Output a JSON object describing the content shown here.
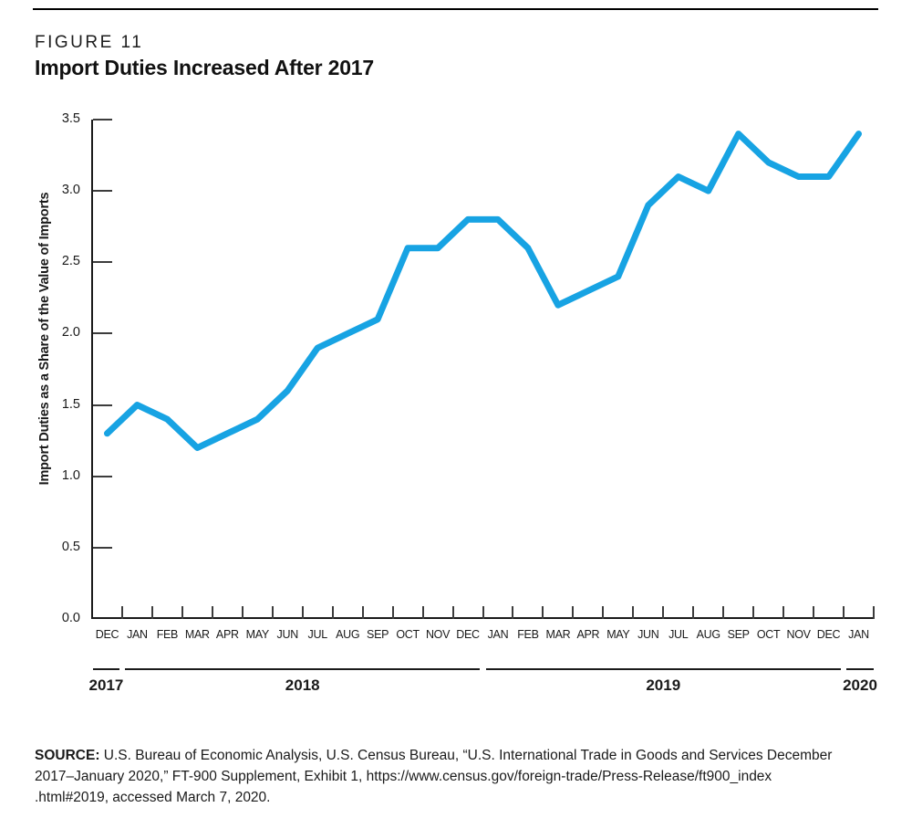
{
  "figure": {
    "label": "FIGURE 11",
    "title": "Import Duties Increased After 2017"
  },
  "chart_data": {
    "type": "line",
    "title": "Import Duties Increased After 2017",
    "xlabel": "",
    "ylabel": "Import Duties as a Share of the Value of Imports",
    "ylim": [
      0,
      3.5
    ],
    "y_tick_labels": [
      "3.5",
      "3.0",
      "2.5",
      "2.0",
      "1.5",
      "1.0",
      "0.5",
      "0.0"
    ],
    "categories": [
      "DEC",
      "JAN",
      "FEB",
      "MAR",
      "APR",
      "MAY",
      "JUN",
      "JUL",
      "AUG",
      "SEP",
      "OCT",
      "NOV",
      "DEC",
      "JAN",
      "FEB",
      "MAR",
      "APR",
      "MAY",
      "JUN",
      "JUL",
      "AUG",
      "SEP",
      "OCT",
      "NOV",
      "DEC",
      "JAN"
    ],
    "years": [
      "2017",
      "2018",
      "2019",
      "2020"
    ],
    "values": [
      1.3,
      1.5,
      1.4,
      1.2,
      1.3,
      1.4,
      1.6,
      1.9,
      2.0,
      2.1,
      2.6,
      2.6,
      2.8,
      2.8,
      2.6,
      2.2,
      2.3,
      2.4,
      2.9,
      3.1,
      3.0,
      3.4,
      3.2,
      3.1,
      3.1,
      3.4
    ],
    "line_color": "#17A3E3",
    "grid": false,
    "legend": "none"
  },
  "source": {
    "label": "SOURCE:",
    "lines": [
      "U.S. Bureau of Economic Analysis, U.S. Census Bureau, “U.S. International Trade in Goods and Services December",
      "2017–January 2020,” FT-900 Supplement, Exhibit 1, https://www.census.gov/foreign-trade/Press-Release/ft900_index",
      ".html#2019, accessed March 7, 2020."
    ]
  }
}
